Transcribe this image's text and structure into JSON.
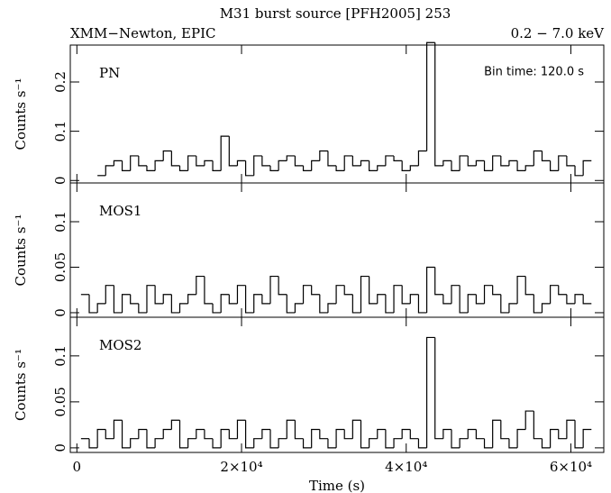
{
  "title": "M31 burst source [PFH2005] 253",
  "subtitle_left": "XMM−Newton, EPIC",
  "subtitle_right": "0.2 − 7.0 keV",
  "chart_data": [
    {
      "type": "step",
      "label": "PN",
      "annotation": "Bin time: 120.0 s",
      "ylabel": "Counts s⁻¹",
      "color": "#000000",
      "x": [
        3000,
        4000,
        5000,
        6000,
        7000,
        8000,
        9000,
        10000,
        11000,
        12000,
        13000,
        14000,
        15000,
        16000,
        17000,
        18000,
        19000,
        20000,
        21000,
        22000,
        23000,
        24000,
        25000,
        26000,
        27000,
        28000,
        29000,
        30000,
        31000,
        32000,
        33000,
        34000,
        35000,
        36000,
        37000,
        38000,
        39000,
        40000,
        41000,
        42000,
        43000,
        44000,
        45000,
        46000,
        47000,
        48000,
        49000,
        50000,
        51000,
        52000,
        53000,
        54000,
        55000,
        56000,
        57000,
        58000,
        59000,
        60000,
        61000,
        62000
      ],
      "values": [
        0.01,
        0.03,
        0.04,
        0.02,
        0.05,
        0.03,
        0.02,
        0.04,
        0.06,
        0.03,
        0.02,
        0.05,
        0.03,
        0.04,
        0.02,
        0.09,
        0.03,
        0.04,
        0.01,
        0.05,
        0.03,
        0.02,
        0.04,
        0.05,
        0.03,
        0.02,
        0.04,
        0.06,
        0.03,
        0.02,
        0.05,
        0.03,
        0.04,
        0.02,
        0.03,
        0.05,
        0.04,
        0.02,
        0.03,
        0.06,
        0.28,
        0.03,
        0.04,
        0.02,
        0.05,
        0.03,
        0.04,
        0.02,
        0.05,
        0.03,
        0.04,
        0.02,
        0.03,
        0.06,
        0.04,
        0.02,
        0.05,
        0.03,
        0.01,
        0.04
      ],
      "xlim": [
        -800,
        64000
      ],
      "xticks": [
        0,
        20000,
        40000,
        60000
      ],
      "ylim": [
        -0.005,
        0.275
      ],
      "yticks": [
        0,
        0.1,
        0.2
      ]
    },
    {
      "type": "step",
      "label": "MOS1",
      "ylabel": "Counts s⁻¹",
      "color": "#000000",
      "x": [
        1000,
        2000,
        3000,
        4000,
        5000,
        6000,
        7000,
        8000,
        9000,
        10000,
        11000,
        12000,
        13000,
        14000,
        15000,
        16000,
        17000,
        18000,
        19000,
        20000,
        21000,
        22000,
        23000,
        24000,
        25000,
        26000,
        27000,
        28000,
        29000,
        30000,
        31000,
        32000,
        33000,
        34000,
        35000,
        36000,
        37000,
        38000,
        39000,
        40000,
        41000,
        42000,
        43000,
        44000,
        45000,
        46000,
        47000,
        48000,
        49000,
        50000,
        51000,
        52000,
        53000,
        54000,
        55000,
        56000,
        57000,
        58000,
        59000,
        60000,
        61000,
        62000
      ],
      "values": [
        0.02,
        0,
        0.01,
        0.03,
        0,
        0.02,
        0.01,
        0,
        0.03,
        0.01,
        0.02,
        0,
        0.01,
        0.02,
        0.04,
        0.01,
        0,
        0.02,
        0.01,
        0.03,
        0,
        0.02,
        0.01,
        0.04,
        0.02,
        0,
        0.01,
        0.03,
        0.02,
        0,
        0.01,
        0.03,
        0.02,
        0,
        0.04,
        0.01,
        0.02,
        0,
        0.03,
        0.01,
        0.02,
        0,
        0.05,
        0.02,
        0.01,
        0.03,
        0,
        0.02,
        0.01,
        0.03,
        0.02,
        0,
        0.01,
        0.04,
        0.02,
        0,
        0.01,
        0.03,
        0.02,
        0.01,
        0.02,
        0.01
      ],
      "xlim": [
        -800,
        64000
      ],
      "xticks": [
        0,
        20000,
        40000,
        60000
      ],
      "ylim": [
        -0.005,
        0.1426
      ],
      "yticks": [
        0,
        0.05,
        0.1
      ]
    },
    {
      "type": "step",
      "label": "MOS2",
      "ylabel": "Counts s⁻¹",
      "xlabel": "Time (s)",
      "color": "#000000",
      "x": [
        1000,
        2000,
        3000,
        4000,
        5000,
        6000,
        7000,
        8000,
        9000,
        10000,
        11000,
        12000,
        13000,
        14000,
        15000,
        16000,
        17000,
        18000,
        19000,
        20000,
        21000,
        22000,
        23000,
        24000,
        25000,
        26000,
        27000,
        28000,
        29000,
        30000,
        31000,
        32000,
        33000,
        34000,
        35000,
        36000,
        37000,
        38000,
        39000,
        40000,
        41000,
        42000,
        43000,
        44000,
        45000,
        46000,
        47000,
        48000,
        49000,
        50000,
        51000,
        52000,
        53000,
        54000,
        55000,
        56000,
        57000,
        58000,
        59000,
        60000,
        61000,
        62000
      ],
      "values": [
        0.01,
        0,
        0.02,
        0.01,
        0.03,
        0,
        0.01,
        0.02,
        0,
        0.01,
        0.02,
        0.03,
        0,
        0.01,
        0.02,
        0.01,
        0,
        0.02,
        0.01,
        0.03,
        0,
        0.01,
        0.02,
        0,
        0.01,
        0.03,
        0.01,
        0,
        0.02,
        0.01,
        0,
        0.02,
        0.01,
        0.03,
        0,
        0.01,
        0.02,
        0,
        0.01,
        0.02,
        0.01,
        0,
        0.12,
        0.01,
        0.02,
        0,
        0.01,
        0.02,
        0.01,
        0,
        0.03,
        0.01,
        0,
        0.02,
        0.04,
        0.01,
        0,
        0.02,
        0.01,
        0.03,
        0,
        0.02
      ],
      "xlim": [
        -800,
        64000
      ],
      "xticks": [
        0,
        {
          "value": 20000,
          "label": "2×10⁴"
        },
        {
          "value": 40000,
          "label": "4×10⁴"
        },
        {
          "value": 60000,
          "label": "6×10⁴"
        }
      ],
      "ylim": [
        -0.005,
        0.142
      ],
      "yticks": [
        0,
        0.05,
        0.1
      ]
    }
  ]
}
